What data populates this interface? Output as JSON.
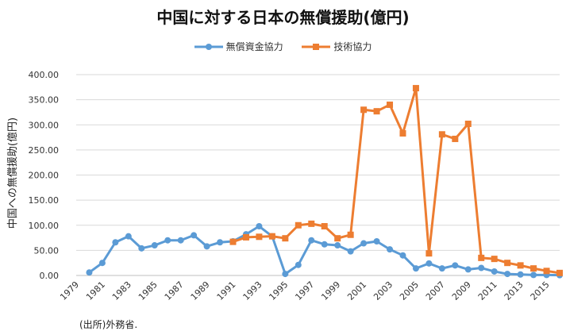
{
  "chart_data": {
    "type": "line",
    "title": "中国に対する日本の無償援助(億円)",
    "ylabel": "中国への無償援助(億円)",
    "xlabel": "",
    "ylim": [
      0,
      400
    ],
    "yticks": [
      "0.00",
      "50.00",
      "100.00",
      "150.00",
      "200.00",
      "250.00",
      "300.00",
      "350.00",
      "400.00"
    ],
    "xticks": [
      "1979",
      "1981",
      "1983",
      "1985",
      "1987",
      "1989",
      "1991",
      "1993",
      "1995",
      "1997",
      "1999",
      "2001",
      "2003",
      "2005",
      "2007",
      "2009",
      "2011",
      "2013",
      "2015"
    ],
    "grid": true,
    "legend_position": "top",
    "source_note": "(出所)外務省.",
    "colors": {
      "grant": "#5b9bd5",
      "technical": "#ed7d31"
    },
    "series": [
      {
        "name": "無償資金協力",
        "color": "#5b9bd5",
        "marker": "circle",
        "x": [
          1980,
          1981,
          1982,
          1983,
          1984,
          1985,
          1986,
          1987,
          1988,
          1989,
          1990,
          1991,
          1992,
          1993,
          1994,
          1995,
          1996,
          1997,
          1998,
          1999,
          2000,
          2001,
          2002,
          2003,
          2004,
          2005,
          2006,
          2007,
          2008,
          2009,
          2010,
          2011,
          2012,
          2013,
          2014,
          2015,
          2016
        ],
        "values": [
          6,
          25,
          66,
          78,
          54,
          60,
          70,
          70,
          80,
          58,
          66,
          68,
          82,
          98,
          78,
          3,
          21,
          70,
          62,
          60,
          48,
          64,
          68,
          52,
          40,
          14,
          24,
          14,
          20,
          12,
          15,
          8,
          3,
          2,
          1,
          1,
          0.5
        ]
      },
      {
        "name": "技術協力",
        "color": "#ed7d31",
        "marker": "square",
        "x": [
          1991,
          1992,
          1993,
          1994,
          1995,
          1996,
          1997,
          1998,
          1999,
          2000,
          2001,
          2002,
          2003,
          2004,
          2005,
          2006,
          2007,
          2008,
          2009,
          2010,
          2011,
          2012,
          2013,
          2014,
          2015,
          2016
        ],
        "values": [
          67,
          76,
          77,
          78,
          74,
          100,
          103,
          98,
          74,
          81,
          330,
          327,
          340,
          283,
          373,
          44,
          281,
          272,
          302,
          35,
          33,
          25,
          20,
          14,
          9,
          5
        ]
      }
    ]
  }
}
